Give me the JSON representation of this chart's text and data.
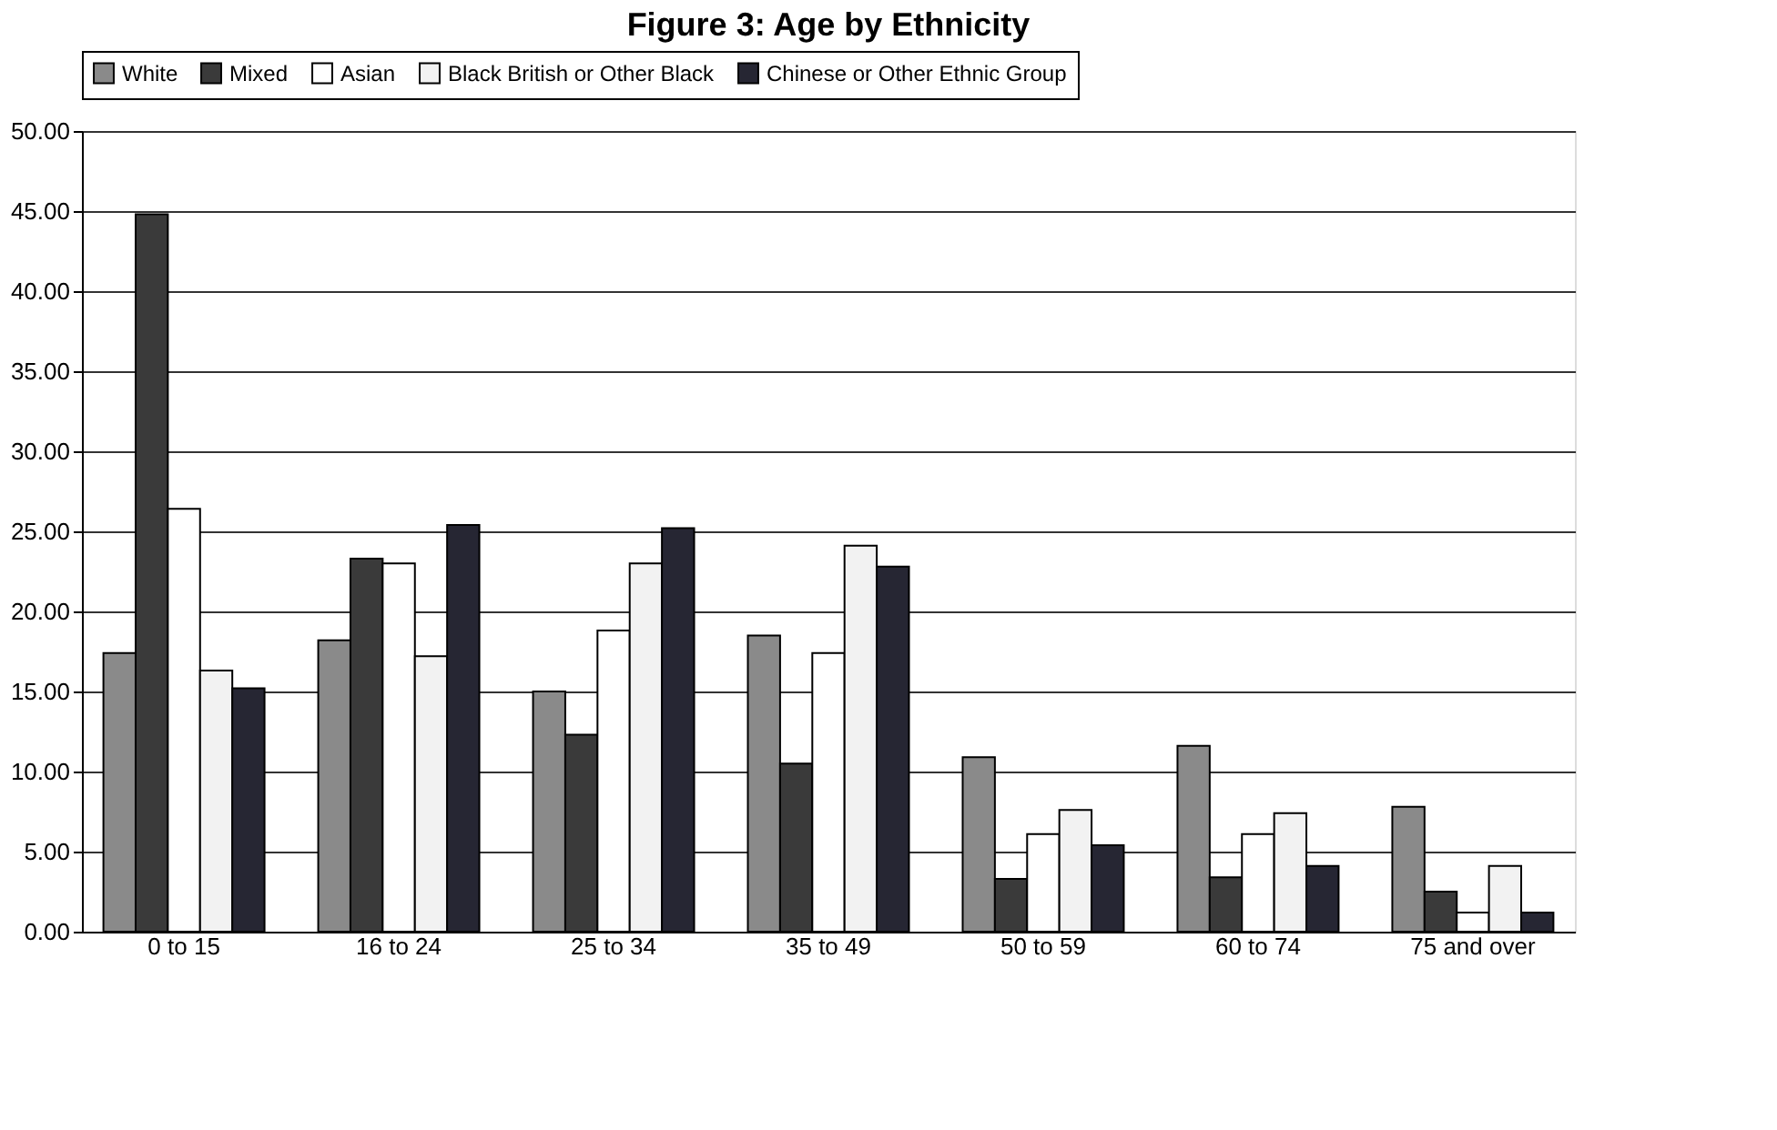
{
  "chart_data": {
    "type": "bar",
    "title": "Figure 3: Age by Ethnicity",
    "categories": [
      "0 to 15",
      "16 to 24",
      "25 to 34",
      "35 to 49",
      "50 to 59",
      "60 to 74",
      "75 and over"
    ],
    "series": [
      {
        "name": "White",
        "color": "#8a8a8a",
        "values": [
          17.4,
          18.2,
          15.0,
          18.5,
          10.9,
          11.6,
          7.8
        ]
      },
      {
        "name": "Mixed",
        "color": "#3a3a3a",
        "values": [
          44.8,
          23.3,
          12.3,
          10.5,
          3.3,
          3.4,
          2.5
        ]
      },
      {
        "name": "Asian",
        "color": "#ffffff",
        "values": [
          26.4,
          23.0,
          18.8,
          17.4,
          6.1,
          6.1,
          1.2
        ]
      },
      {
        "name": "Black British or Other Black",
        "color": "#f2f2f2",
        "values": [
          16.3,
          17.2,
          23.0,
          24.1,
          7.6,
          7.4,
          4.1
        ]
      },
      {
        "name": "Chinese or Other Ethnic Group",
        "color": "#262633",
        "values": [
          15.2,
          25.4,
          25.2,
          22.8,
          5.4,
          4.1,
          1.2
        ]
      }
    ],
    "ylim": [
      0,
      50
    ],
    "yticks": [
      {
        "value": 0,
        "label": "0.00"
      },
      {
        "value": 5,
        "label": "5.00"
      },
      {
        "value": 10,
        "label": "10.00"
      },
      {
        "value": 15,
        "label": "15.00"
      },
      {
        "value": 20,
        "label": "20.00"
      },
      {
        "value": 25,
        "label": "25.00"
      },
      {
        "value": 30,
        "label": "30.00"
      },
      {
        "value": 35,
        "label": "35.00"
      },
      {
        "value": 40,
        "label": "40.00"
      },
      {
        "value": 45,
        "label": "45.00"
      },
      {
        "value": 50,
        "label": "50.00"
      }
    ],
    "grid": "y",
    "legend": "top"
  }
}
